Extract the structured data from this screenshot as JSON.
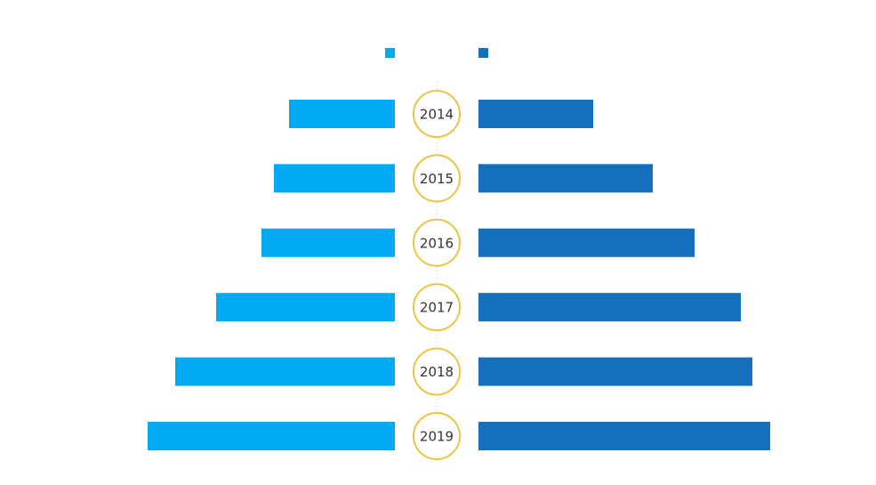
{
  "chart_data": {
    "type": "bar",
    "categories": [
      "2014",
      "2015",
      "2016",
      "2017",
      "2018",
      "2019"
    ],
    "series": [
      {
        "color": "#00aaf2",
        "values": [
          119,
          136,
          150,
          201,
          247,
          278
        ]
      },
      {
        "color": "#1570bc",
        "values": [
          129,
          196,
          243,
          295,
          308,
          328
        ]
      }
    ],
    "xlim": [
      0,
      330
    ]
  }
}
